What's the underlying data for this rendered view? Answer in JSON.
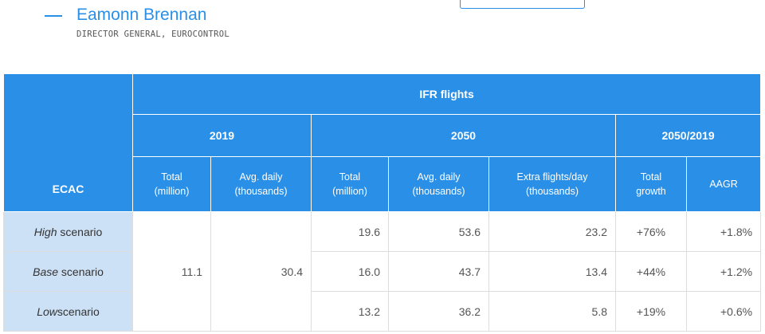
{
  "quote": {
    "author_name": "Eamonn Brennan",
    "author_role": "DIRECTOR GENERAL, EUROCONTROL"
  },
  "table": {
    "row_header": "ECAC",
    "group_title": "IFR flights",
    "periods": [
      "2019",
      "2050",
      "2050/2019"
    ],
    "columns": [
      {
        "label_line1": "Total",
        "label_line2": "(million)"
      },
      {
        "label_line1": "Avg. daily",
        "label_line2": "(thousands)"
      },
      {
        "label_line1": "Total",
        "label_line2": "(million)"
      },
      {
        "label_line1": "Avg. daily",
        "label_line2": "(thousands)"
      },
      {
        "label_line1": "Extra flights/day",
        "label_line2": "(thousands)"
      },
      {
        "label_line1": "Total",
        "label_line2": "growth"
      },
      {
        "label_line1": "AAGR",
        "label_line2": ""
      }
    ],
    "baseline_2019": {
      "total_million": "11.1",
      "avg_daily_thousands": "30.4"
    },
    "rows": [
      {
        "scenario": "High",
        "suffix": " scenario",
        "total_2050": "19.6",
        "avg_daily_2050": "53.6",
        "extra_per_day": "23.2",
        "total_growth": "+76%",
        "aagr": "+1.8%"
      },
      {
        "scenario": "Base",
        "suffix": " scenario",
        "total_2050": "16.0",
        "avg_daily_2050": "43.7",
        "extra_per_day": "13.4",
        "total_growth": "+44%",
        "aagr": "+1.2%"
      },
      {
        "scenario": "Low",
        "suffix": "scenario",
        "total_2050": "13.2",
        "avg_daily_2050": "36.2",
        "extra_per_day": "5.8",
        "total_growth": "+19%",
        "aagr": "+0.6%"
      }
    ]
  }
}
